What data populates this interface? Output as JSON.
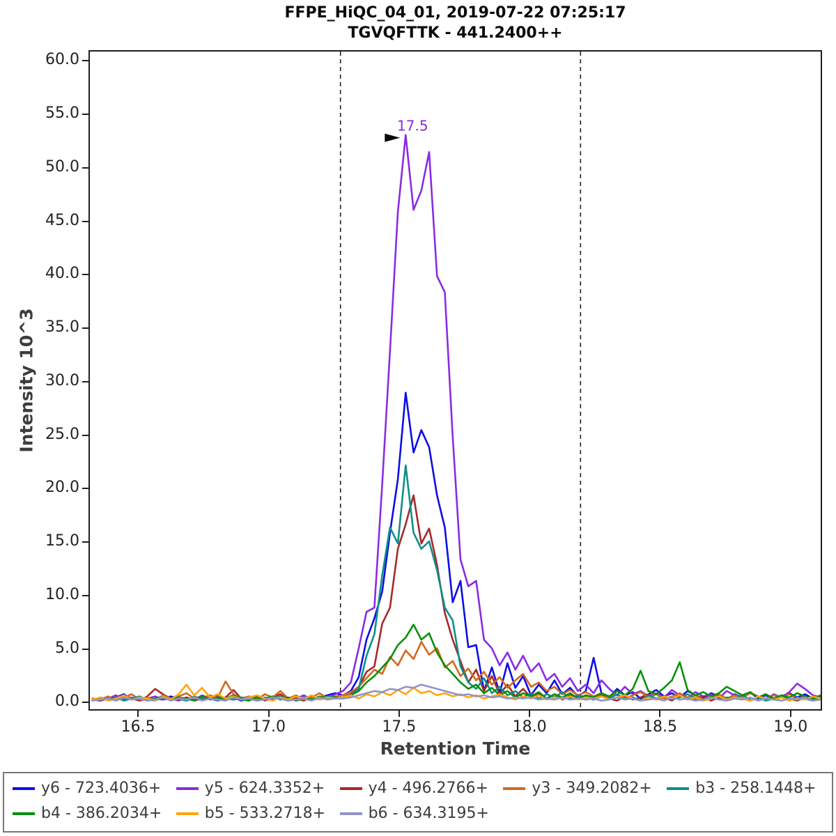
{
  "header": {
    "title_line1": "FFPE_HiQC_04_01, 2019-07-22 07:25:17",
    "title_line2": "TGVQFTTK - 441.2400++"
  },
  "chart_data": {
    "type": "line",
    "title": "FFPE_HiQC_04_01, 2019-07-22 07:25:17",
    "subtitle": "TGVQFTTK - 441.2400++",
    "xlabel": "Retention Time",
    "ylabel": "Intensity 10^3",
    "xlim": [
      16.31,
      19.11
    ],
    "ylim": [
      -0.5,
      61.0
    ],
    "grid": false,
    "legend_position": "bottom",
    "x_ticks": {
      "values": [
        16.5,
        17.0,
        17.5,
        18.0,
        18.5,
        19.0
      ],
      "labels": [
        "16.5",
        "17.0",
        "17.5",
        "18.0",
        "18.5",
        "19.0"
      ]
    },
    "y_ticks": {
      "values": [
        0,
        5,
        10,
        15,
        20,
        25,
        30,
        35,
        40,
        45,
        50,
        55,
        60
      ],
      "labels": [
        "0.0",
        "5.0",
        "10.0",
        "15.0",
        "20.0",
        "25.0",
        "30.0",
        "35.0",
        "40.0",
        "45.0",
        "50.0",
        "55.0",
        "60.0"
      ]
    },
    "x_start": 16.32,
    "x_step": 0.03,
    "peak_boundaries": [
      17.27,
      18.19
    ],
    "peak_annotation": {
      "x": 17.52,
      "y": 53.2,
      "label": "17.5",
      "color": "#8a2be2"
    },
    "series": [
      {
        "name": "y6 - 723.4036+",
        "color": "#0d0de8",
        "values": [
          0.3,
          0.5,
          0.4,
          0.6,
          0.9,
          0.4,
          0.6,
          0.3,
          0.5,
          0.4,
          0.7,
          0.5,
          0.3,
          0.6,
          0.4,
          0.5,
          0.8,
          0.4,
          0.6,
          0.3,
          0.5,
          0.7,
          0.4,
          0.6,
          0.5,
          0.3,
          0.7,
          0.5,
          0.4,
          0.6,
          0.8,
          1.0,
          0.8,
          1.2,
          2.5,
          6.0,
          8.0,
          10.5,
          16.0,
          21.0,
          29.1,
          23.5,
          25.6,
          24.0,
          19.5,
          16.5,
          9.5,
          11.5,
          5.3,
          5.5,
          1.2,
          3.4,
          1.0,
          3.8,
          1.5,
          2.6,
          0.8,
          1.8,
          1.0,
          2.2,
          0.9,
          1.5,
          0.7,
          1.2,
          4.3,
          1.0,
          0.6,
          1.4,
          0.8,
          1.1,
          0.5,
          0.9,
          1.3,
          0.7,
          1.0,
          0.6,
          1.2,
          0.8,
          0.5,
          1.0,
          0.7,
          0.4,
          0.9,
          0.6,
          1.1,
          0.5,
          0.8,
          0.4,
          0.7,
          1.0,
          0.6,
          0.9,
          0.5,
          0.7,
          0.4
        ]
      },
      {
        "name": "y5 - 624.3352+",
        "color": "#8a2be2",
        "values": [
          0.4,
          0.3,
          0.5,
          0.8,
          0.4,
          0.6,
          0.3,
          0.5,
          0.7,
          0.4,
          0.5,
          0.3,
          0.6,
          0.4,
          0.8,
          0.5,
          0.3,
          0.6,
          0.4,
          0.5,
          0.7,
          0.3,
          0.5,
          0.4,
          0.6,
          0.3,
          0.5,
          0.8,
          0.4,
          0.6,
          0.5,
          0.9,
          1.2,
          2.0,
          5.2,
          8.6,
          9.0,
          20.5,
          33.0,
          46.0,
          53.2,
          46.2,
          48.0,
          51.6,
          40.0,
          38.5,
          25.0,
          13.5,
          11.0,
          11.5,
          6.0,
          5.2,
          3.6,
          4.8,
          3.2,
          4.5,
          3.0,
          3.8,
          2.2,
          2.8,
          1.6,
          2.4,
          1.2,
          1.8,
          1.0,
          2.2,
          1.4,
          0.8,
          1.6,
          0.9,
          1.2,
          0.7,
          1.0,
          0.6,
          1.3,
          0.8,
          0.5,
          1.1,
          0.7,
          0.9,
          0.5,
          1.2,
          0.8,
          0.6,
          1.0,
          0.7,
          0.4,
          0.9,
          0.6,
          1.1,
          1.9,
          1.4,
          0.8,
          0.6,
          0.5
        ]
      },
      {
        "name": "y4 - 496.2766+",
        "color": "#a52a2a",
        "values": [
          0.4,
          0.3,
          0.6,
          0.4,
          0.8,
          0.5,
          0.3,
          0.7,
          1.4,
          0.9,
          0.5,
          0.4,
          0.6,
          0.3,
          0.5,
          0.8,
          0.4,
          0.6,
          1.3,
          0.5,
          0.4,
          0.7,
          0.3,
          0.6,
          0.9,
          0.4,
          0.5,
          0.3,
          0.7,
          0.4,
          0.6,
          0.5,
          0.6,
          0.9,
          1.5,
          3.0,
          3.5,
          7.5,
          9.0,
          14.5,
          16.8,
          19.5,
          15.0,
          16.4,
          13.0,
          8.5,
          6.0,
          4.0,
          2.0,
          3.2,
          1.2,
          2.6,
          0.9,
          1.8,
          0.7,
          1.4,
          0.6,
          1.0,
          0.5,
          0.9,
          0.4,
          0.8,
          0.5,
          0.7,
          0.4,
          0.8,
          0.5,
          0.3,
          0.7,
          0.4,
          0.6,
          0.9,
          0.4,
          0.6,
          0.3,
          0.8,
          0.5,
          0.4,
          0.7,
          0.3,
          0.6,
          0.4,
          0.8,
          0.5,
          0.3,
          0.6,
          0.9,
          0.4,
          0.7,
          0.5,
          0.3,
          0.6,
          0.4,
          0.7,
          0.5
        ]
      },
      {
        "name": "y3 - 349.2082+",
        "color": "#d2691e",
        "values": [
          0.5,
          0.4,
          0.7,
          0.3,
          0.6,
          0.9,
          0.4,
          0.6,
          0.3,
          0.8,
          0.5,
          0.7,
          1.0,
          0.5,
          0.4,
          0.8,
          0.6,
          2.1,
          0.9,
          0.5,
          0.7,
          0.4,
          0.9,
          0.6,
          1.2,
          0.5,
          0.8,
          0.4,
          0.6,
          1.0,
          0.5,
          0.7,
          0.8,
          1.1,
          1.6,
          2.4,
          3.2,
          2.8,
          4.4,
          3.6,
          5.0,
          4.2,
          5.8,
          4.6,
          5.2,
          3.4,
          4.0,
          2.6,
          3.3,
          2.2,
          3.0,
          1.8,
          2.5,
          1.5,
          2.2,
          2.8,
          1.6,
          2.0,
          1.2,
          1.6,
          0.9,
          1.3,
          0.8,
          1.1,
          0.7,
          1.0,
          0.6,
          0.9,
          0.5,
          0.8,
          1.1,
          0.6,
          0.9,
          0.5,
          0.7,
          1.0,
          0.6,
          0.8,
          0.4,
          0.7,
          0.9,
          0.5,
          0.8,
          0.6,
          1.0,
          0.7,
          0.5,
          0.8,
          0.6,
          0.9,
          0.5,
          0.7,
          0.4,
          0.6,
          0.5
        ]
      },
      {
        "name": "b3 - 258.1448+",
        "color": "#0e8f8b",
        "values": [
          0.3,
          0.5,
          0.4,
          0.6,
          0.3,
          0.5,
          0.7,
          0.4,
          0.3,
          0.6,
          0.4,
          0.5,
          0.3,
          0.7,
          0.4,
          0.6,
          0.3,
          0.5,
          0.4,
          0.6,
          0.5,
          0.3,
          0.6,
          0.4,
          0.7,
          0.5,
          0.3,
          0.6,
          0.4,
          0.5,
          0.7,
          0.6,
          0.5,
          0.8,
          1.4,
          4.5,
          6.5,
          12.0,
          16.5,
          15.0,
          22.3,
          16.0,
          14.5,
          15.2,
          12.5,
          9.0,
          7.8,
          3.5,
          2.0,
          1.4,
          2.4,
          1.0,
          1.6,
          0.8,
          1.2,
          0.6,
          1.0,
          0.5,
          0.9,
          0.6,
          1.1,
          0.5,
          0.8,
          0.6,
          0.4,
          0.7,
          0.5,
          0.9,
          0.4,
          0.6,
          0.3,
          0.8,
          0.5,
          0.7,
          0.4,
          0.6,
          0.9,
          0.5,
          0.3,
          0.7,
          0.4,
          0.6,
          0.5,
          0.8,
          0.4,
          0.6,
          0.3,
          0.5,
          0.7,
          0.4,
          0.6,
          0.5,
          0.3,
          0.6,
          0.4
        ]
      },
      {
        "name": "b4 - 386.2034+",
        "color": "#0a8f0a",
        "values": [
          0.3,
          0.6,
          0.4,
          0.5,
          0.8,
          0.4,
          0.6,
          0.3,
          0.5,
          0.7,
          0.4,
          0.6,
          0.5,
          0.3,
          0.7,
          0.4,
          0.6,
          0.5,
          0.8,
          0.4,
          0.3,
          0.6,
          0.5,
          0.7,
          0.4,
          0.6,
          0.3,
          0.5,
          0.4,
          0.7,
          0.5,
          0.6,
          0.5,
          0.8,
          1.2,
          2.0,
          2.6,
          3.4,
          4.2,
          5.5,
          6.2,
          7.4,
          6.0,
          6.6,
          4.8,
          3.6,
          2.8,
          2.0,
          1.4,
          1.8,
          1.0,
          1.5,
          0.8,
          1.2,
          0.6,
          1.0,
          0.7,
          1.1,
          0.5,
          0.9,
          0.6,
          1.0,
          0.5,
          0.8,
          0.6,
          1.0,
          0.7,
          1.2,
          0.8,
          1.4,
          3.1,
          1.2,
          0.9,
          1.5,
          2.2,
          3.9,
          1.3,
          0.8,
          1.1,
          0.7,
          1.0,
          1.6,
          1.2,
          0.8,
          1.1,
          0.6,
          0.9,
          0.5,
          0.8,
          0.6,
          1.0,
          0.7,
          0.5,
          0.8,
          0.6
        ]
      },
      {
        "name": "b5 - 533.2718+",
        "color": "#ffa510",
        "values": [
          0.4,
          0.6,
          0.3,
          0.5,
          0.8,
          0.4,
          0.6,
          0.5,
          0.3,
          0.7,
          0.4,
          0.9,
          1.8,
          0.8,
          1.5,
          0.6,
          0.9,
          0.5,
          0.7,
          0.4,
          0.6,
          0.8,
          0.5,
          0.3,
          0.6,
          0.4,
          0.7,
          0.5,
          0.8,
          0.4,
          0.6,
          0.5,
          0.6,
          0.8,
          0.5,
          0.9,
          0.7,
          1.1,
          0.8,
          1.3,
          0.9,
          1.5,
          1.0,
          1.2,
          0.8,
          1.0,
          0.7,
          0.9,
          0.6,
          0.8,
          0.5,
          0.7,
          0.9,
          0.6,
          0.4,
          0.7,
          0.5,
          0.8,
          0.4,
          0.6,
          0.5,
          0.7,
          0.4,
          0.6,
          0.5,
          0.7,
          0.4,
          0.6,
          0.8,
          0.5,
          0.3,
          0.6,
          0.4,
          0.7,
          0.5,
          0.8,
          0.4,
          0.6,
          0.3,
          0.5,
          0.7,
          0.4,
          0.6,
          0.5,
          0.3,
          0.7,
          0.5,
          0.4,
          0.6,
          0.3,
          0.5,
          0.4,
          0.7,
          0.5,
          0.4
        ]
      },
      {
        "name": "b6 - 634.3195+",
        "color": "#9094c8",
        "values": [
          0.3,
          0.4,
          0.5,
          0.3,
          0.6,
          0.4,
          0.5,
          0.3,
          0.4,
          0.6,
          0.3,
          0.5,
          0.4,
          0.6,
          0.3,
          0.5,
          0.4,
          0.3,
          0.6,
          0.4,
          0.5,
          0.3,
          0.4,
          0.6,
          0.5,
          0.3,
          0.4,
          0.5,
          0.3,
          0.6,
          0.4,
          0.5,
          0.5,
          0.6,
          0.8,
          1.0,
          1.2,
          1.1,
          1.4,
          1.3,
          1.6,
          1.5,
          1.8,
          1.6,
          1.4,
          1.2,
          1.0,
          0.8,
          0.9,
          0.7,
          0.8,
          0.6,
          0.7,
          0.5,
          0.6,
          0.5,
          0.6,
          0.4,
          0.5,
          0.4,
          0.6,
          0.4,
          0.5,
          0.4,
          0.5,
          0.3,
          0.4,
          0.6,
          0.4,
          0.5,
          0.3,
          0.4,
          0.5,
          0.3,
          0.6,
          0.4,
          0.5,
          0.3,
          0.4,
          0.6,
          0.4,
          0.3,
          0.5,
          0.4,
          0.6,
          0.3,
          0.5,
          0.4,
          0.3,
          0.5,
          0.4,
          0.6,
          0.3,
          0.4,
          0.5
        ]
      }
    ]
  }
}
